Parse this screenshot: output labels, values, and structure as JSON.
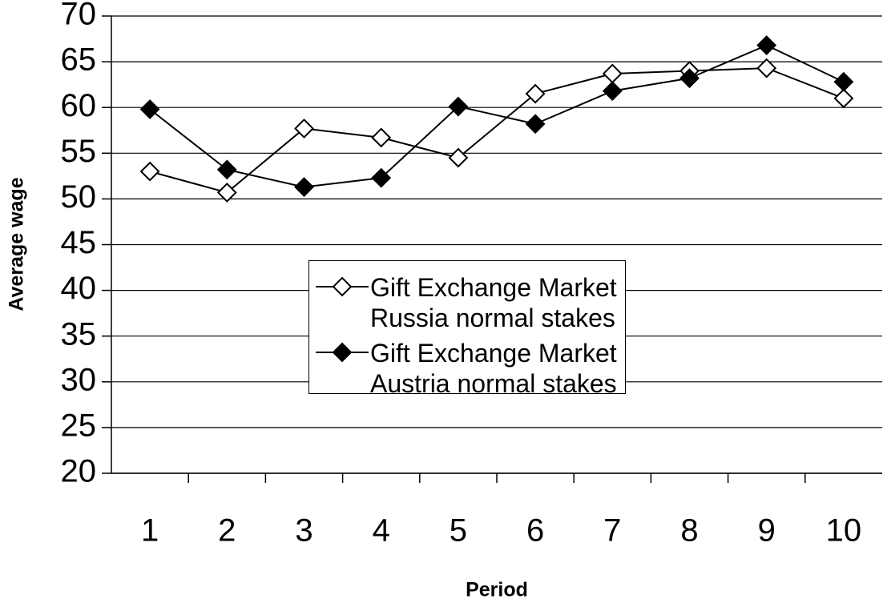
{
  "chart_data": {
    "type": "line",
    "categories": [
      "1",
      "2",
      "3",
      "4",
      "5",
      "6",
      "7",
      "8",
      "9",
      "10"
    ],
    "series": [
      {
        "name": "Gift Exchange Market Russia normal stakes",
        "color": "#000000",
        "marker": "open-diamond",
        "values": [
          53,
          50.7,
          57.7,
          56.7,
          54.5,
          61.5,
          63.7,
          64,
          64.3,
          61
        ]
      },
      {
        "name": "Gift Exchange Market Austria normal stakes",
        "color": "#000000",
        "marker": "filled-diamond",
        "values": [
          59.8,
          53.2,
          51.3,
          52.3,
          60.1,
          58.2,
          61.8,
          63.2,
          66.8,
          62.8
        ]
      }
    ],
    "x_label": "Period",
    "y_label": "Average wage",
    "ylim": [
      20,
      70
    ],
    "yticks": [
      20,
      25,
      30,
      35,
      40,
      45,
      50,
      55,
      60,
      65,
      70
    ],
    "grid": true
  }
}
